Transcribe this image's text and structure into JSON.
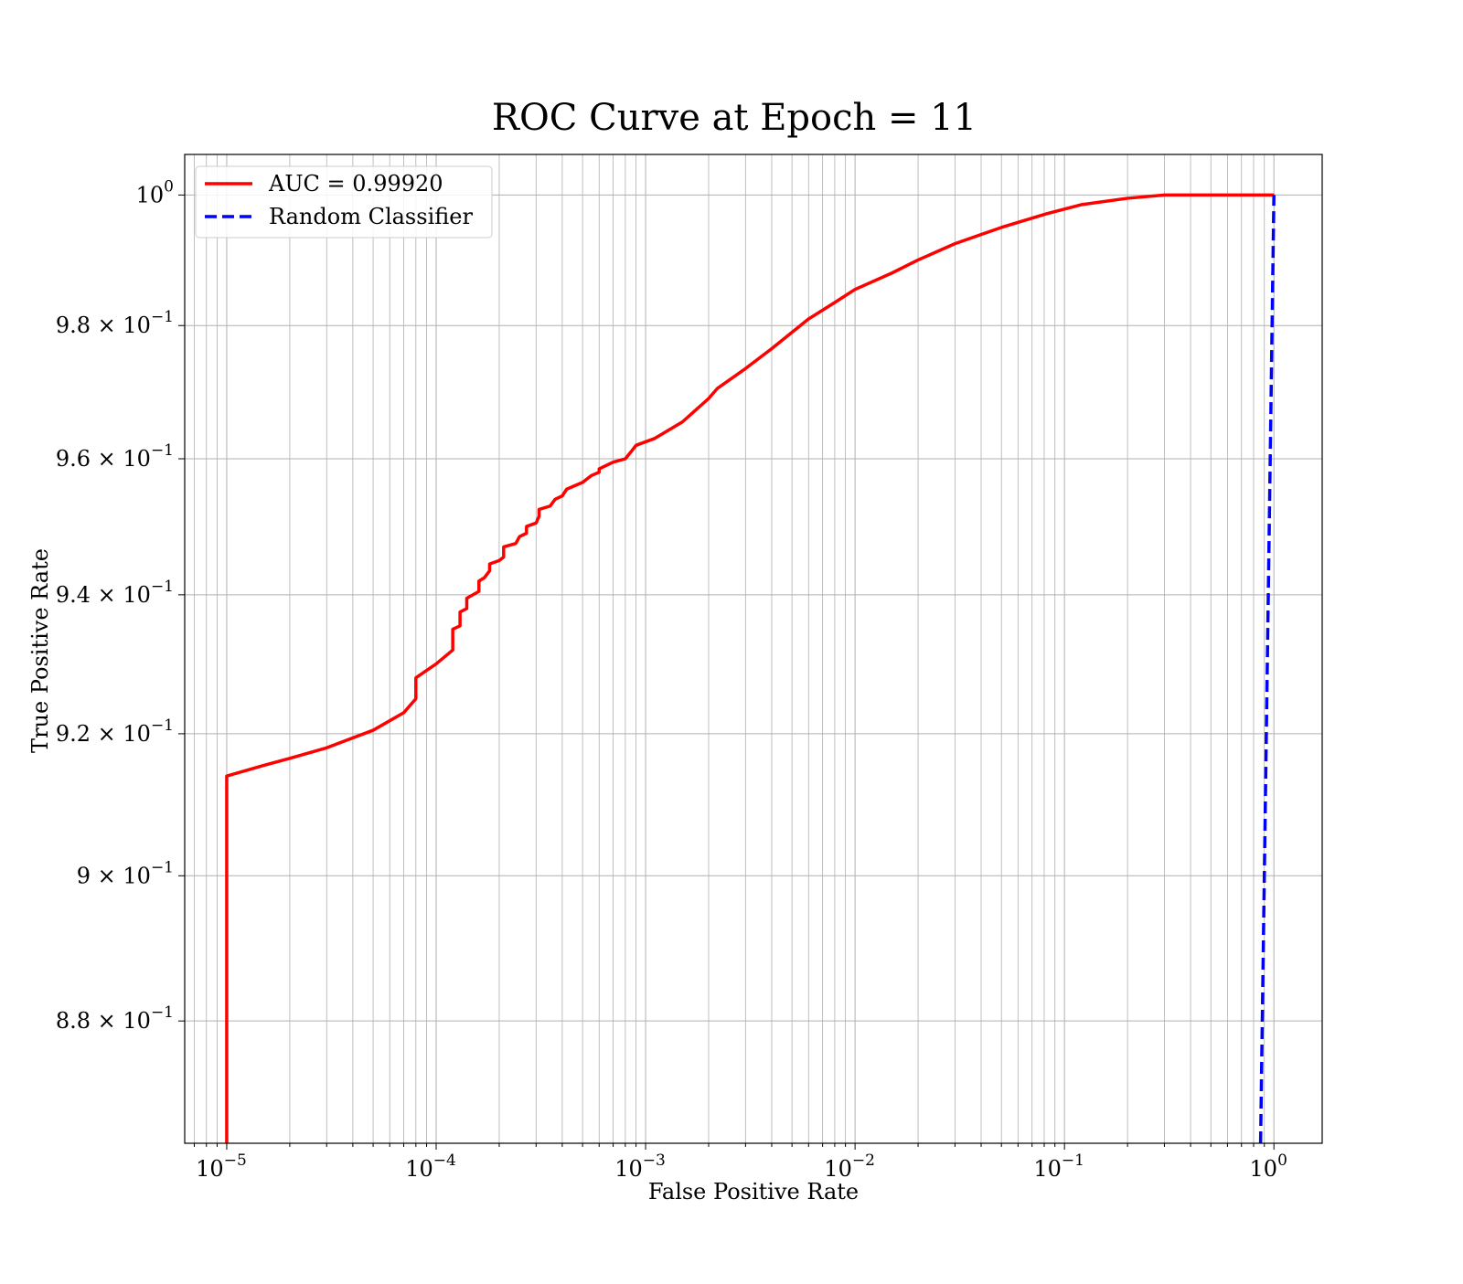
{
  "chart_data": {
    "type": "line",
    "title": "ROC Curve at Epoch = 11",
    "xlabel": "False Positive Rate",
    "ylabel": "True Positive Rate",
    "x_scale": "log",
    "y_scale": "log",
    "xlim": [
      6.3e-06,
      1.7
    ],
    "ylim": [
      0.8635,
      1.0063
    ],
    "grid": {
      "major": true,
      "minor": true
    },
    "legend_position": "top-left",
    "x_ticks": [
      {
        "value": 1e-05,
        "base": "10",
        "exp": "−5"
      },
      {
        "value": 0.0001,
        "base": "10",
        "exp": "−4"
      },
      {
        "value": 0.001,
        "base": "10",
        "exp": "−3"
      },
      {
        "value": 0.01,
        "base": "10",
        "exp": "−2"
      },
      {
        "value": 0.1,
        "base": "10",
        "exp": "−1"
      },
      {
        "value": 1,
        "base": "10",
        "exp": "0"
      }
    ],
    "y_ticks": [
      {
        "value": 1.0,
        "base": "10",
        "exp": "0"
      },
      {
        "value": 0.98,
        "base": "9.8 × 10",
        "exp": "−1"
      },
      {
        "value": 0.96,
        "base": "9.6 × 10",
        "exp": "−1"
      },
      {
        "value": 0.94,
        "base": "9.4 × 10",
        "exp": "−1"
      },
      {
        "value": 0.92,
        "base": "9.2 × 10",
        "exp": "−1"
      },
      {
        "value": 0.9,
        "base": "9 × 10",
        "exp": "−1"
      },
      {
        "value": 0.88,
        "base": "8.8 × 10",
        "exp": "−1"
      }
    ],
    "series": [
      {
        "name": "AUC = 0.99920",
        "color": "#ff0000",
        "style": "solid",
        "points": [
          [
            1e-05,
            0.8635
          ],
          [
            1e-05,
            0.87
          ],
          [
            1e-05,
            0.914
          ],
          [
            1.5e-05,
            0.9155
          ],
          [
            2e-05,
            0.9165
          ],
          [
            3e-05,
            0.918
          ],
          [
            5e-05,
            0.9205
          ],
          [
            7e-05,
            0.923
          ],
          [
            8e-05,
            0.925
          ],
          [
            8e-05,
            0.928
          ],
          [
            0.0001,
            0.93
          ],
          [
            0.00012,
            0.932
          ],
          [
            0.00012,
            0.935
          ],
          [
            0.00013,
            0.9355
          ],
          [
            0.00013,
            0.9375
          ],
          [
            0.00014,
            0.938
          ],
          [
            0.00014,
            0.9395
          ],
          [
            0.00016,
            0.9405
          ],
          [
            0.00016,
            0.942
          ],
          [
            0.00017,
            0.9425
          ],
          [
            0.00018,
            0.9435
          ],
          [
            0.00018,
            0.9445
          ],
          [
            0.0002,
            0.945
          ],
          [
            0.00021,
            0.9455
          ],
          [
            0.00021,
            0.947
          ],
          [
            0.00024,
            0.9475
          ],
          [
            0.00025,
            0.9485
          ],
          [
            0.00027,
            0.949
          ],
          [
            0.00027,
            0.95
          ],
          [
            0.0003,
            0.9505
          ],
          [
            0.00031,
            0.9515
          ],
          [
            0.00031,
            0.9525
          ],
          [
            0.00035,
            0.953
          ],
          [
            0.00037,
            0.954
          ],
          [
            0.0004,
            0.9545
          ],
          [
            0.00042,
            0.9555
          ],
          [
            0.0005,
            0.9565
          ],
          [
            0.00055,
            0.9575
          ],
          [
            0.0006,
            0.958
          ],
          [
            0.0006,
            0.9585
          ],
          [
            0.0007,
            0.9595
          ],
          [
            0.0008,
            0.96
          ],
          [
            0.00085,
            0.961
          ],
          [
            0.0009,
            0.962
          ],
          [
            0.0011,
            0.963
          ],
          [
            0.0015,
            0.9655
          ],
          [
            0.002,
            0.969
          ],
          [
            0.0022,
            0.9705
          ],
          [
            0.003,
            0.9735
          ],
          [
            0.004,
            0.9765
          ],
          [
            0.006,
            0.981
          ],
          [
            0.008,
            0.9835
          ],
          [
            0.01,
            0.9855
          ],
          [
            0.015,
            0.988
          ],
          [
            0.02,
            0.99
          ],
          [
            0.03,
            0.9925
          ],
          [
            0.05,
            0.995
          ],
          [
            0.08,
            0.997
          ],
          [
            0.12,
            0.9985
          ],
          [
            0.2,
            0.9995
          ],
          [
            0.3,
            1.0
          ],
          [
            0.5,
            1.0
          ],
          [
            1.0,
            1.0
          ]
        ]
      },
      {
        "name": "Random Classifier",
        "color": "#0000ff",
        "style": "dashed",
        "points": [
          [
            0.8635,
            0.8635
          ],
          [
            0.9,
            0.9
          ],
          [
            0.95,
            0.95
          ],
          [
            1.0,
            1.0
          ]
        ]
      }
    ]
  }
}
